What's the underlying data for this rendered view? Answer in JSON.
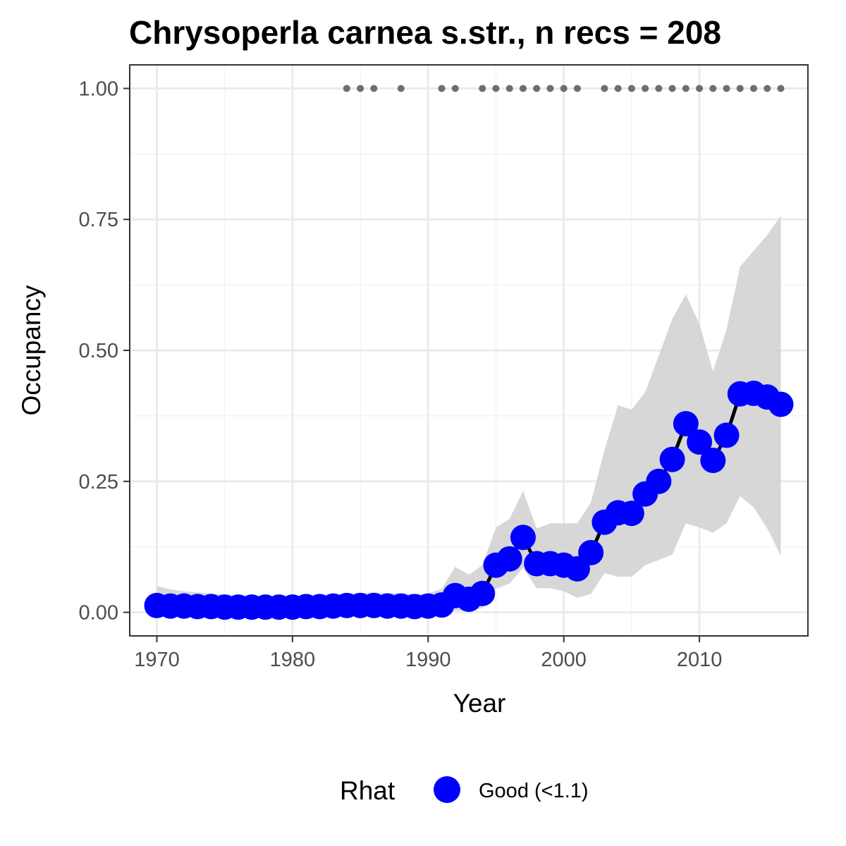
{
  "chart_data": {
    "type": "line",
    "title": "Chrysoperla carnea s.str., n recs = 208",
    "xlabel": "Year",
    "ylabel": "Occupancy",
    "xlim": [
      1968,
      2018
    ],
    "ylim": [
      -0.045,
      1.045
    ],
    "x_ticks": [
      1970,
      1980,
      1990,
      2000,
      2010
    ],
    "x_tick_labels": [
      "1970",
      "1980",
      "1990",
      "2000",
      "2010"
    ],
    "y_ticks": [
      0,
      0.25,
      0.5,
      0.75,
      1.0
    ],
    "y_tick_labels": [
      "0.00",
      "0.25",
      "0.50",
      "0.75",
      "1.00"
    ],
    "grid": true,
    "legend": {
      "position": "bottom",
      "title": "Rhat",
      "entries": [
        {
          "label": "Good (<1.1)",
          "color": "#0000ff"
        }
      ]
    },
    "colors": {
      "points": "#0000ff",
      "line": "#000000",
      "ribbon": "#d3d3d3",
      "record_years": "#6e6e6e",
      "grid_major": "#ebebeb",
      "grid_minor": "#f3f3f3",
      "panel_border": "#333333"
    },
    "series": [
      {
        "x": [
          1970,
          1971,
          1972,
          1973,
          1974,
          1975,
          1976,
          1977,
          1978,
          1979,
          1980,
          1981,
          1982,
          1983,
          1984,
          1985,
          1986,
          1987,
          1988,
          1989,
          1990,
          1991,
          1992,
          1993,
          1994,
          1995,
          1996,
          1997,
          1998,
          1999,
          2000,
          2001,
          2002,
          2003,
          2004,
          2005,
          2006,
          2007,
          2008,
          2009,
          2010,
          2011,
          2012,
          2013,
          2014,
          2015,
          2016
        ],
        "y": [
          0.013,
          0.012,
          0.012,
          0.011,
          0.011,
          0.01,
          0.01,
          0.01,
          0.01,
          0.01,
          0.01,
          0.011,
          0.011,
          0.012,
          0.013,
          0.013,
          0.013,
          0.012,
          0.012,
          0.011,
          0.012,
          0.014,
          0.032,
          0.025,
          0.036,
          0.09,
          0.102,
          0.143,
          0.093,
          0.093,
          0.09,
          0.083,
          0.114,
          0.172,
          0.19,
          0.189,
          0.226,
          0.25,
          0.292,
          0.36,
          0.325,
          0.29,
          0.338,
          0.417,
          0.418,
          0.411,
          0.397
        ],
        "lower": [
          0.0,
          0.0,
          0.0,
          0.0,
          0.0,
          0.0,
          0.0,
          0.0,
          0.0,
          0.0,
          0.0,
          0.0,
          0.0,
          0.0,
          0.0,
          0.0,
          0.0,
          0.0,
          0.0,
          0.0,
          0.0,
          0.0,
          0.003,
          0.003,
          0.008,
          0.045,
          0.055,
          0.085,
          0.046,
          0.046,
          0.04,
          0.028,
          0.035,
          0.075,
          0.068,
          0.068,
          0.09,
          0.1,
          0.11,
          0.17,
          0.162,
          0.152,
          0.17,
          0.222,
          0.2,
          0.16,
          0.108
        ],
        "upper": [
          0.05,
          0.044,
          0.04,
          0.038,
          0.036,
          0.034,
          0.032,
          0.031,
          0.03,
          0.03,
          0.03,
          0.03,
          0.031,
          0.033,
          0.036,
          0.037,
          0.038,
          0.037,
          0.036,
          0.035,
          0.036,
          0.045,
          0.087,
          0.072,
          0.09,
          0.162,
          0.178,
          0.232,
          0.16,
          0.17,
          0.17,
          0.17,
          0.21,
          0.31,
          0.395,
          0.387,
          0.42,
          0.49,
          0.56,
          0.607,
          0.55,
          0.46,
          0.54,
          0.66,
          0.69,
          0.72,
          0.757
        ]
      }
    ],
    "record_years": [
      1984,
      1985,
      1986,
      1988,
      1991,
      1992,
      1994,
      1995,
      1996,
      1997,
      1998,
      1999,
      2000,
      2001,
      2003,
      2004,
      2005,
      2006,
      2007,
      2008,
      2009,
      2010,
      2011,
      2012,
      2013,
      2014,
      2015,
      2016
    ],
    "record_y": 1.0
  }
}
